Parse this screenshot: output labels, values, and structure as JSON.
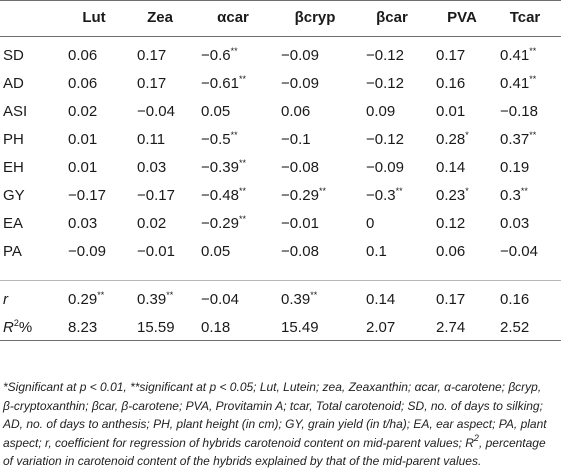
{
  "table": {
    "columns": [
      "",
      "Lut",
      "Zea",
      "αcar",
      "βcryp",
      "βcar",
      "PVA",
      "Tcar"
    ],
    "rows": [
      {
        "label": "SD",
        "cells": [
          "0.06",
          "0.17",
          "−0.6**",
          "−0.09",
          "−0.12",
          "0.17",
          "0.41**"
        ]
      },
      {
        "label": "AD",
        "cells": [
          "0.06",
          "0.17",
          "−0.61**",
          "−0.09",
          "−0.12",
          "0.16",
          "0.41**"
        ]
      },
      {
        "label": "ASI",
        "cells": [
          "0.02",
          "−0.04",
          "0.05",
          "0.06",
          "0.09",
          "0.01",
          "−0.18"
        ]
      },
      {
        "label": "PH",
        "cells": [
          "0.01",
          "0.11",
          "−0.5**",
          "−0.1",
          "−0.12",
          "0.28*",
          "0.37**"
        ]
      },
      {
        "label": "EH",
        "cells": [
          "0.01",
          "0.03",
          "−0.39**",
          "−0.08",
          "−0.09",
          "0.14",
          "0.19"
        ]
      },
      {
        "label": "GY",
        "cells": [
          "−0.17",
          "−0.17",
          "−0.48**",
          "−0.29**",
          "−0.3**",
          "0.23*",
          "0.3**"
        ]
      },
      {
        "label": "EA",
        "cells": [
          "0.03",
          "0.02",
          "−0.29**",
          "−0.01",
          "0",
          "0.12",
          "0.03"
        ]
      },
      {
        "label": "PA",
        "cells": [
          "−0.09",
          "−0.01",
          "0.05",
          "−0.08",
          "0.1",
          "0.06",
          "−0.04"
        ]
      }
    ],
    "summary_rows": [
      {
        "label": "r",
        "cells": [
          "0.29**",
          "0.39**",
          "−0.04",
          "0.39**",
          "0.14",
          "0.17",
          "0.16"
        ]
      },
      {
        "label": "R2%",
        "cells": [
          "8.23",
          "15.59",
          "0.18",
          "15.49",
          "2.07",
          "2.74",
          "2.52"
        ]
      }
    ]
  },
  "footnote": "*Significant at p < 0.01, **significant at p < 0.05; Lut, Lutein; zea, Zeaxanthin; αcar, α-carotene; βcryp, β-cryptoxanthin; βcar, β-carotene; PVA, Provitamin A; tcar, Total carotenoid; SD, no. of days to silking; AD, no. of days to anthesis; PH, plant height (in cm); GY, grain yield (in t/ha); EA, ear aspect; PA, plant aspect; r, coefficient for regression of hybrids carotenoid content on mid-parent values; R2, percentage of variation in carotenoid content of the hybrids explained by that of the mid-parent values."
}
